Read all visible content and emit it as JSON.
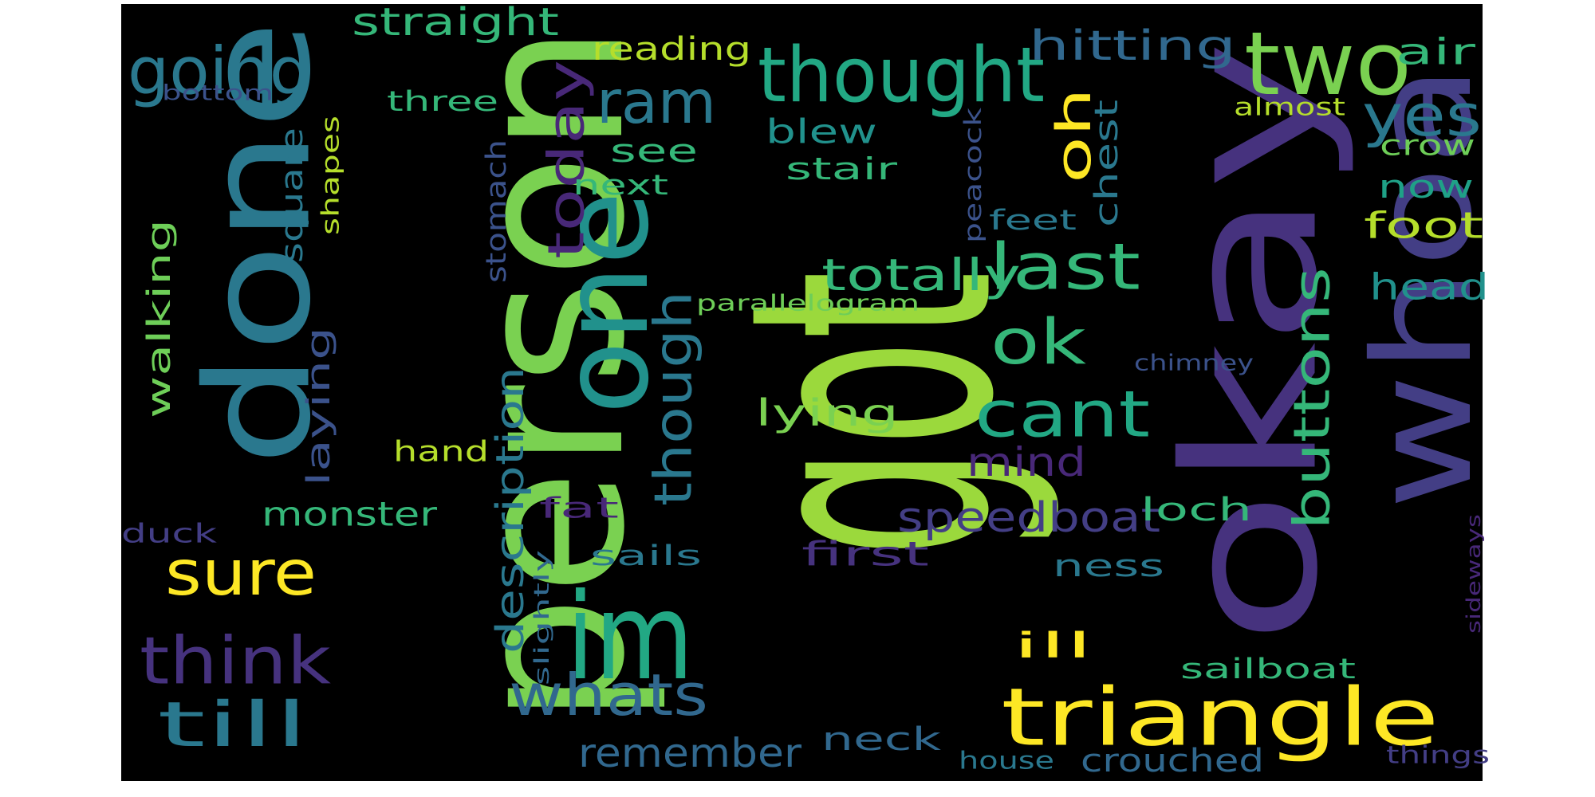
{
  "word_cloud": {
    "background": "#000000",
    "words": [
      {
        "text": "got",
        "color": "#9bd93c"
      },
      {
        "text": "person",
        "color": "#7ad151"
      },
      {
        "text": "okay",
        "color": "#46327e"
      },
      {
        "text": "done",
        "color": "#2a788e"
      },
      {
        "text": "whoa",
        "color": "#433e85"
      },
      {
        "text": "one",
        "color": "#21918c"
      },
      {
        "text": "im",
        "color": "#22a884"
      },
      {
        "text": "triangle",
        "color": "#fde725"
      },
      {
        "text": "two",
        "color": "#7ad151"
      },
      {
        "text": "thought",
        "color": "#22a884"
      },
      {
        "text": "going",
        "color": "#2a788e"
      },
      {
        "text": "think",
        "color": "#46327e"
      },
      {
        "text": "sure",
        "color": "#fde725"
      },
      {
        "text": "till",
        "color": "#2a788e"
      },
      {
        "text": "whats",
        "color": "#31688e"
      },
      {
        "text": "though",
        "color": "#2a788e"
      },
      {
        "text": "ram",
        "color": "#2a788e"
      },
      {
        "text": "today",
        "color": "#482878"
      },
      {
        "text": "cant",
        "color": "#22a884"
      },
      {
        "text": "last",
        "color": "#35b779"
      },
      {
        "text": "ok",
        "color": "#35b779"
      },
      {
        "text": "buttons",
        "color": "#35b779"
      },
      {
        "text": "yes",
        "color": "#2a788e"
      },
      {
        "text": "oh",
        "color": "#fde725"
      },
      {
        "text": "hitting",
        "color": "#31688e"
      },
      {
        "text": "straight",
        "color": "#35b779"
      },
      {
        "text": "reading",
        "color": "#b5de2b"
      },
      {
        "text": "air",
        "color": "#35b779"
      },
      {
        "text": "remember",
        "color": "#31688e"
      },
      {
        "text": "speedboat",
        "color": "#433e85"
      },
      {
        "text": "totally",
        "color": "#35b779"
      },
      {
        "text": "description",
        "color": "#2a788e"
      },
      {
        "text": "laying",
        "color": "#3b528b"
      },
      {
        "text": "walking",
        "color": "#6ece58"
      },
      {
        "text": "square",
        "color": "#2a788e"
      },
      {
        "text": "monster",
        "color": "#35b779"
      },
      {
        "text": "crouched",
        "color": "#31688e"
      },
      {
        "text": "head",
        "color": "#21918c"
      },
      {
        "text": "foot",
        "color": "#b5de2b"
      },
      {
        "text": "now",
        "color": "#1fa187"
      },
      {
        "text": "chest",
        "color": "#2a788e"
      },
      {
        "text": "mind",
        "color": "#482878"
      },
      {
        "text": "lying",
        "color": "#7ad151"
      },
      {
        "text": "blew",
        "color": "#21918c"
      },
      {
        "text": "ill",
        "color": "#fde725"
      },
      {
        "text": "sailboat",
        "color": "#35b779"
      },
      {
        "text": "neck",
        "color": "#31688e"
      },
      {
        "text": "first",
        "color": "#46327e"
      },
      {
        "text": "stomach",
        "color": "#3b528b"
      },
      {
        "text": "loch",
        "color": "#35b779"
      },
      {
        "text": "ness",
        "color": "#2a788e"
      },
      {
        "text": "see",
        "color": "#35b779"
      },
      {
        "text": "stair",
        "color": "#35b779"
      },
      {
        "text": "three",
        "color": "#35b779"
      },
      {
        "text": "shapes",
        "color": "#b5de2b"
      },
      {
        "text": "hand",
        "color": "#b5de2b"
      },
      {
        "text": "fat",
        "color": "#482878"
      },
      {
        "text": "sails",
        "color": "#2a788e"
      },
      {
        "text": "next",
        "color": "#35b779"
      },
      {
        "text": "feet",
        "color": "#2a788e"
      },
      {
        "text": "peacock",
        "color": "#3b528b"
      },
      {
        "text": "crow",
        "color": "#6ece58"
      },
      {
        "text": "almost",
        "color": "#b5de2b"
      },
      {
        "text": "duck",
        "color": "#433e85"
      },
      {
        "text": "parallelogram",
        "color": "#6ece58"
      },
      {
        "text": "chimney",
        "color": "#3b528b"
      },
      {
        "text": "slightly",
        "color": "#31688e"
      },
      {
        "text": "sideways",
        "color": "#482878"
      },
      {
        "text": "house",
        "color": "#2a788e"
      },
      {
        "text": "things",
        "color": "#433e85"
      },
      {
        "text": "bottom",
        "color": "#3b528b"
      }
    ]
  }
}
